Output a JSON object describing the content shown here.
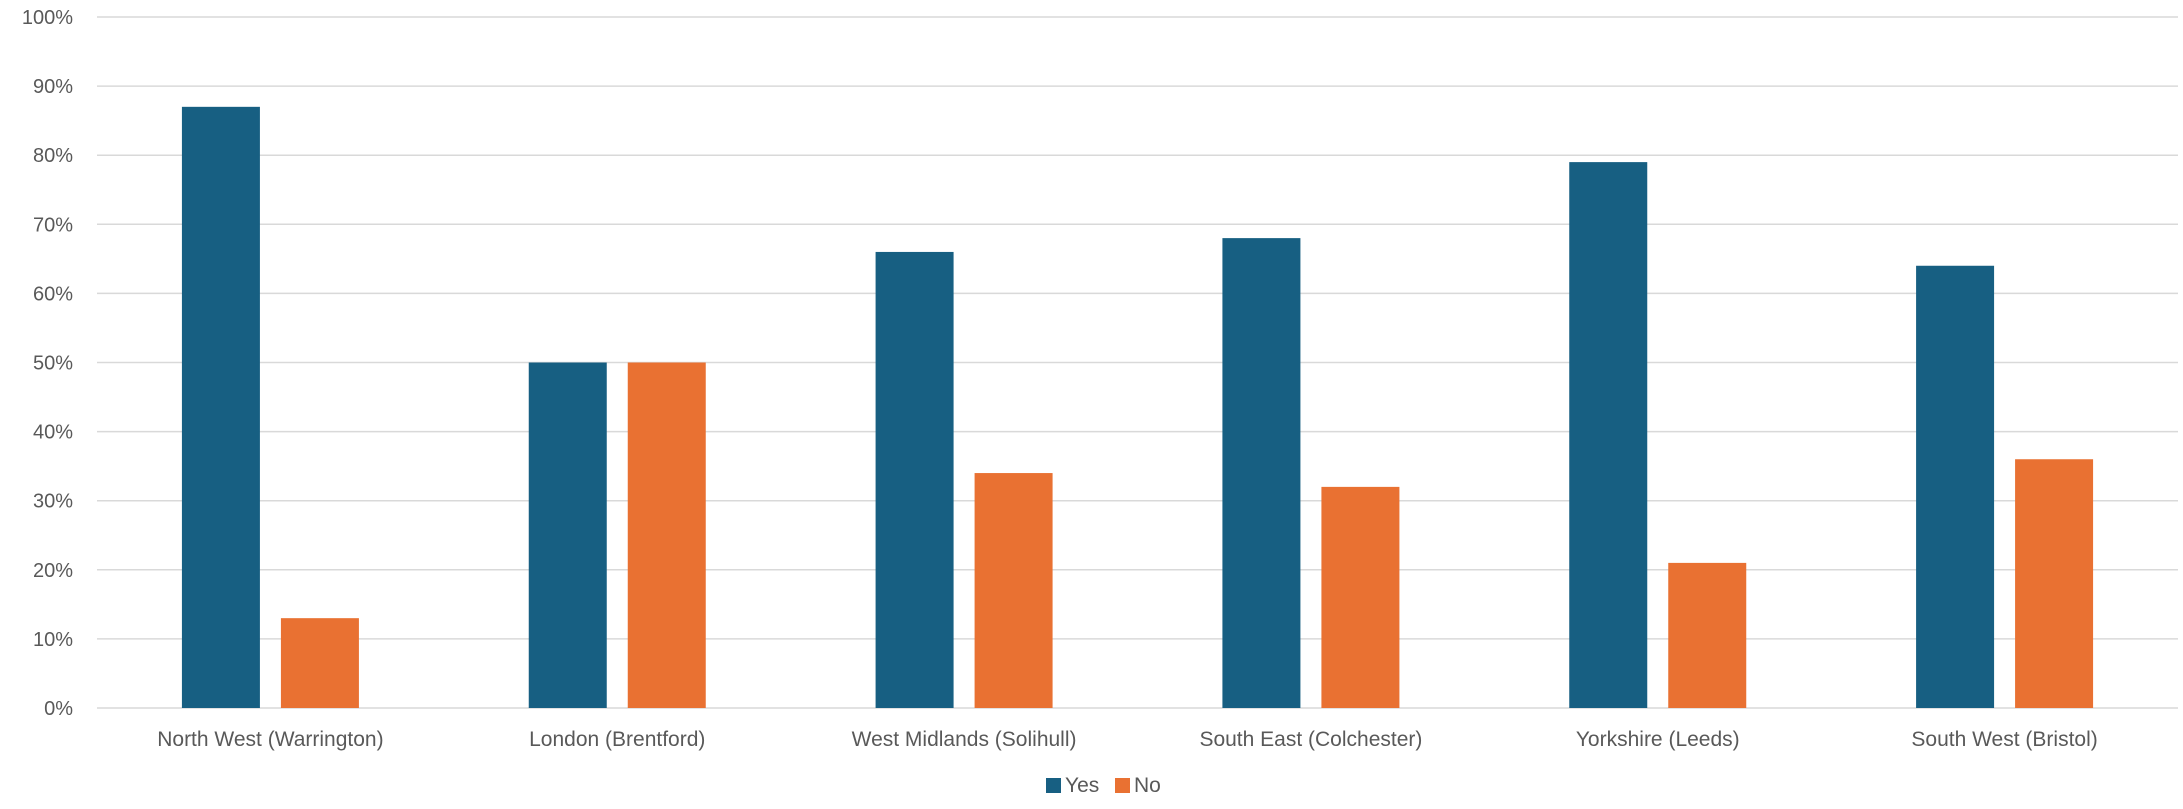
{
  "chart_data": {
    "type": "bar",
    "title": "",
    "xlabel": "",
    "ylabel": "",
    "categories": [
      "North West (Warrington)",
      "London (Brentford)",
      "West Midlands (Solihull)",
      "South East (Colchester)",
      "Yorkshire (Leeds)",
      "South West (Bristol)"
    ],
    "series": [
      {
        "name": "Yes",
        "color": "#175F82",
        "values": [
          87,
          50,
          66,
          68,
          79,
          64
        ]
      },
      {
        "name": "No",
        "color": "#E97132",
        "values": [
          13,
          50,
          34,
          32,
          21,
          36
        ]
      }
    ],
    "ylim": [
      0,
      100
    ],
    "yticks": [
      0,
      10,
      20,
      30,
      40,
      50,
      60,
      70,
      80,
      90,
      100
    ],
    "ytick_labels": [
      "0%",
      "10%",
      "20%",
      "30%",
      "40%",
      "50%",
      "60%",
      "70%",
      "80%",
      "90%",
      "100%"
    ],
    "grid": true,
    "legend_position": "bottom"
  },
  "colors": {
    "grid": "#D9D9D9",
    "axis_text": "#595959"
  }
}
